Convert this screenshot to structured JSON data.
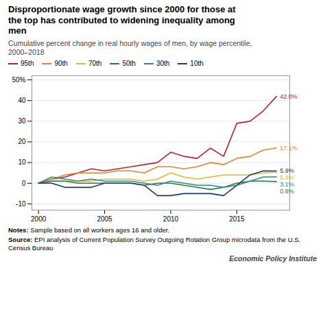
{
  "chart_data": {
    "type": "line",
    "title": "Disproportionate wage growth since 2000 for those at\nthe top has contributed to widening inequality among\nmen",
    "subtitle": "Cumulative percent change in real hourly wages of men, by wage percentile,\n2000–2018",
    "notes": "Notes: Sample based on all workers ages 16 and older.",
    "source": "Source: EPI analysis of Current Population Survey Outgoing Rotation Group microdata from the U.S.\nCensus Bureau",
    "attribution": "Economic Policy Institute",
    "x": [
      2000,
      2001,
      2002,
      2003,
      2004,
      2005,
      2006,
      2007,
      2008,
      2009,
      2010,
      2011,
      2012,
      2013,
      2014,
      2015,
      2016,
      2017,
      2018
    ],
    "series": [
      {
        "name": "95th",
        "color": "#c0212a",
        "values": [
          0,
          2,
          3,
          5,
          7,
          6,
          7,
          8,
          9,
          10,
          15,
          13,
          12,
          17,
          13,
          29,
          30,
          35,
          42
        ],
        "value_labels": [
          null,
          null,
          null,
          null,
          null,
          null,
          null,
          null,
          null,
          null,
          null,
          null,
          null,
          null,
          null,
          null,
          null,
          null,
          "42.0%"
        ]
      },
      {
        "name": "90th",
        "color": "#e8822d",
        "values": [
          0,
          2,
          4,
          5,
          5,
          5,
          6,
          6,
          5,
          8,
          8,
          7,
          8,
          10,
          9,
          12,
          13,
          16,
          17.1
        ],
        "value_labels": [
          null,
          null,
          null,
          null,
          null,
          null,
          null,
          null,
          null,
          null,
          null,
          null,
          null,
          null,
          null,
          null,
          null,
          null,
          "17.1%"
        ]
      },
      {
        "name": "70th",
        "color": "#f0b429",
        "values": [
          0,
          1,
          1,
          1,
          1,
          2,
          2,
          2,
          1,
          2,
          5,
          3,
          2,
          3,
          4,
          4,
          4,
          5,
          5.4
        ],
        "value_labels": [
          null,
          null,
          null,
          null,
          null,
          null,
          null,
          null,
          null,
          null,
          null,
          null,
          null,
          null,
          null,
          null,
          null,
          null,
          "5.4%"
        ]
      },
      {
        "name": "50th",
        "color": "#2a7a45",
        "values": [
          0,
          1,
          1,
          0,
          0,
          0,
          0,
          0,
          -1,
          0,
          0,
          -1,
          -2,
          -3,
          -2,
          0,
          1,
          1,
          0.8
        ],
        "value_labels": [
          null,
          null,
          null,
          null,
          null,
          null,
          null,
          null,
          null,
          null,
          null,
          null,
          null,
          null,
          null,
          null,
          null,
          null,
          "0.8%"
        ]
      },
      {
        "name": "30th",
        "color": "#2a8a8a",
        "values": [
          0,
          3,
          2,
          1,
          2,
          1,
          1,
          1,
          0,
          -1,
          1,
          0,
          -1,
          -1,
          -2,
          -1,
          1,
          3,
          3.1
        ],
        "value_labels": [
          null,
          null,
          null,
          null,
          null,
          null,
          null,
          null,
          null,
          null,
          null,
          null,
          null,
          null,
          null,
          null,
          null,
          null,
          "3.1%"
        ]
      },
      {
        "name": "10th",
        "color": "#1a3a6b",
        "values": [
          0,
          0,
          -2,
          -2,
          -2,
          0,
          0,
          0,
          -1,
          -6,
          -6,
          -5,
          -5,
          -5,
          -6,
          -1,
          4,
          6,
          5.9
        ],
        "value_labels": [
          null,
          null,
          null,
          null,
          null,
          null,
          null,
          null,
          null,
          null,
          null,
          null,
          null,
          null,
          null,
          null,
          null,
          null,
          "5.9%"
        ]
      }
    ],
    "xlim": [
      1999.5,
      2019.0
    ],
    "xticks": [
      2000,
      2005,
      2010,
      2015
    ],
    "ylim": [
      -13,
      52
    ],
    "yticks": [
      -10,
      0,
      10,
      20,
      30,
      40,
      {
        "value": 50,
        "label": "50%"
      }
    ],
    "grid": "y",
    "legend": "top-left"
  }
}
